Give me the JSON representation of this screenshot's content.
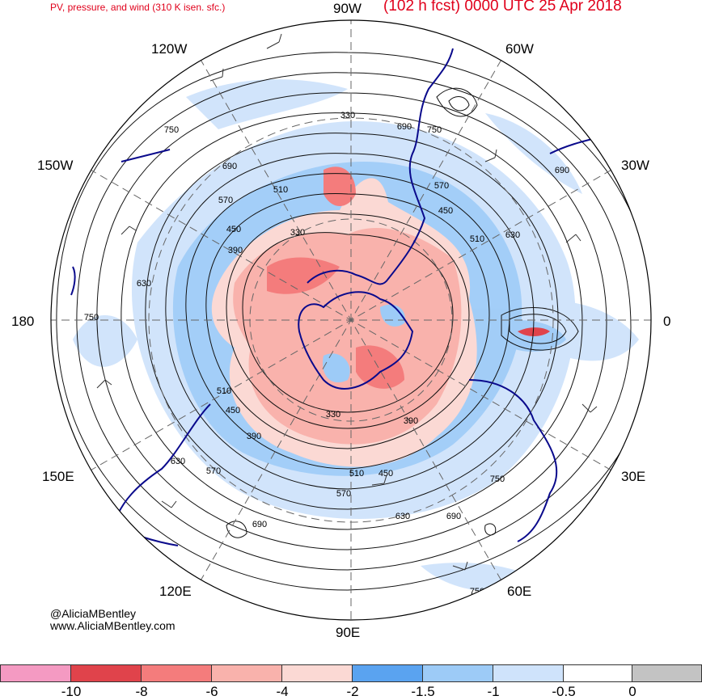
{
  "title_left": "PV, pressure, and wind (310 K isen. sfc.)",
  "title_right": "(102 h fcst) 0000 UTC 25 Apr 2018",
  "credit_handle": "@AliciaMBentley",
  "credit_url": "www.AliciaMBentley.com",
  "longitude_labels": {
    "lon_90w": "90W",
    "lon_60w": "60W",
    "lon_120w": "120W",
    "lon_30w": "30W",
    "lon_150w": "150W",
    "lon_180": "180",
    "lon_0": "0",
    "lon_150e": "150E",
    "lon_30e": "30E",
    "lon_120e": "120E",
    "lon_60e": "60E",
    "lon_90e": "90E"
  },
  "contour_labels": [
    "330",
    "390",
    "450",
    "510",
    "570",
    "630",
    "690",
    "750"
  ],
  "colorbar": {
    "colors": [
      "#f49ac2",
      "#e0434b",
      "#f47c7c",
      "#f9b2ac",
      "#fbd9d4",
      "#5aa3f0",
      "#9dcbf7",
      "#cfe3fb",
      "#ffffff",
      "#c3c3c3"
    ],
    "labels": [
      "-10",
      "-8",
      "-6",
      "-4",
      "-2",
      "-1.5",
      "-1",
      "-0.5",
      "0"
    ]
  },
  "colors": {
    "title": "#e0001b",
    "coastline": "#0a0a8c",
    "pv_negative": "#f47c7c",
    "pv_weak": "#cfe3fb"
  }
}
